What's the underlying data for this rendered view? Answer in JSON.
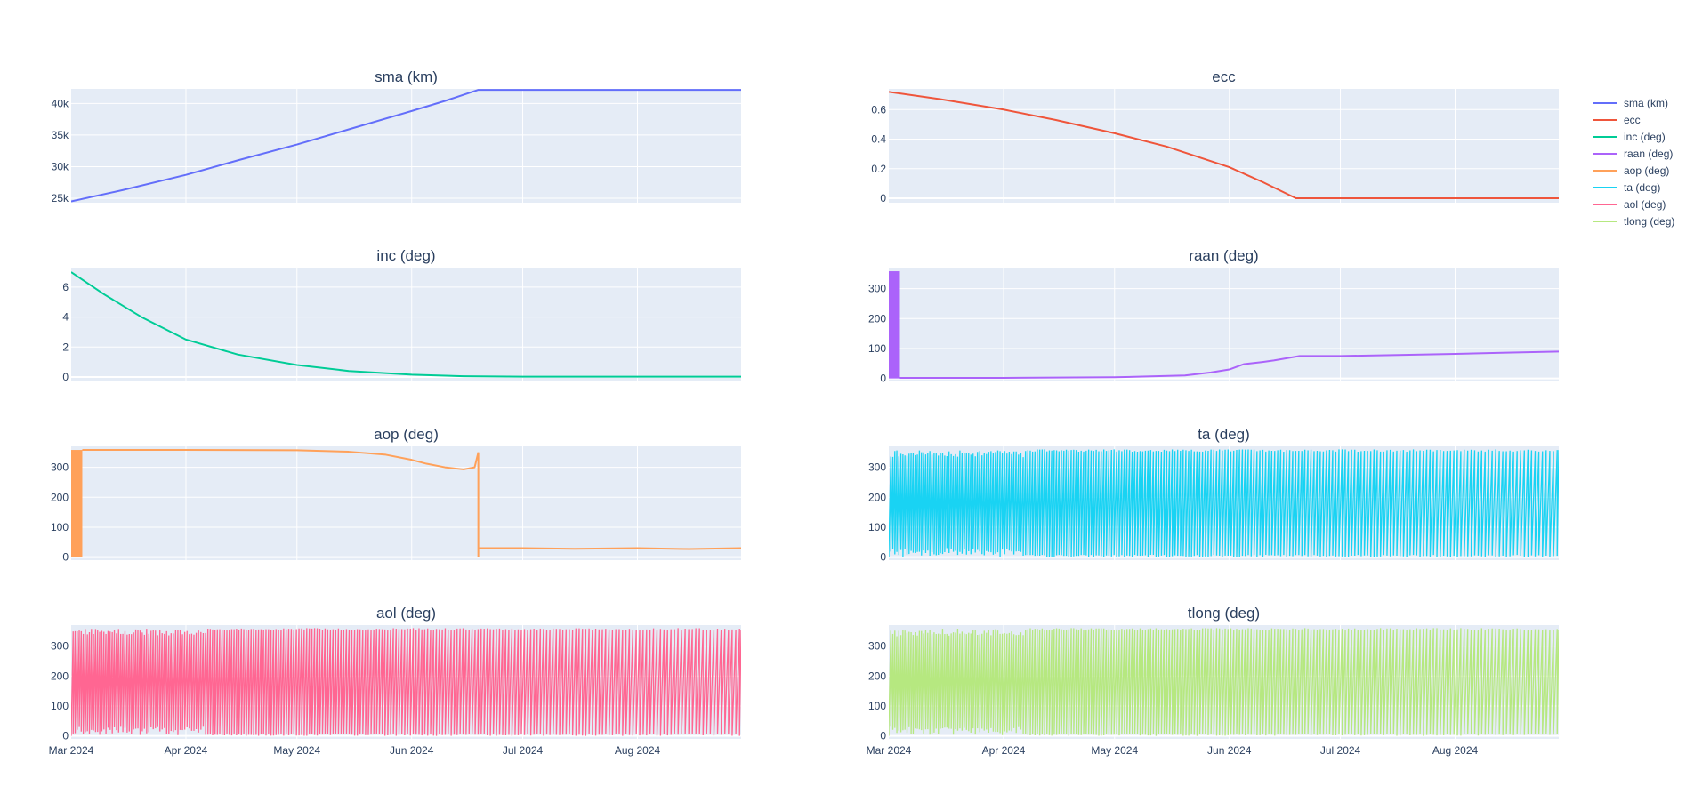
{
  "chart_data": {
    "type": "line",
    "x_range": [
      "2024-03-01",
      "2024-08-29"
    ],
    "x_ticks": [
      {
        "date": "2024-03-01",
        "label": "Mar 2024"
      },
      {
        "date": "2024-04-01",
        "label": "Apr 2024"
      },
      {
        "date": "2024-05-01",
        "label": "May 2024"
      },
      {
        "date": "2024-06-01",
        "label": "Jun 2024"
      },
      {
        "date": "2024-07-01",
        "label": "Jul 2024"
      },
      {
        "date": "2024-08-01",
        "label": "Aug 2024"
      }
    ],
    "legend_position": "top-right",
    "grid": true,
    "plot_bgcolor": "#e5ecf6",
    "subplots": [
      {
        "name": "sma (km)",
        "title": "sma (km)",
        "color": "#636efa",
        "kind": "smooth",
        "ylim": [
          24300,
          42300
        ],
        "y_ticks": [
          {
            "value": 25000,
            "label": "25k"
          },
          {
            "value": 30000,
            "label": "30k"
          },
          {
            "value": 35000,
            "label": "35k"
          },
          {
            "value": 40000,
            "label": "40k"
          }
        ],
        "x": [
          "2024-03-01",
          "2024-03-15",
          "2024-04-01",
          "2024-04-15",
          "2024-05-01",
          "2024-05-15",
          "2024-06-01",
          "2024-06-10",
          "2024-06-19",
          "2024-07-01",
          "2024-08-01",
          "2024-08-29"
        ],
        "y": [
          24500,
          26300,
          28700,
          31000,
          33500,
          35900,
          38800,
          40400,
          42150,
          42150,
          42150,
          42150
        ]
      },
      {
        "name": "ecc",
        "title": "ecc",
        "color": "#ef553b",
        "kind": "smooth",
        "ylim": [
          -0.03,
          0.74
        ],
        "y_ticks": [
          {
            "value": 0,
            "label": "0"
          },
          {
            "value": 0.2,
            "label": "0.2"
          },
          {
            "value": 0.4,
            "label": "0.4"
          },
          {
            "value": 0.6,
            "label": "0.6"
          }
        ],
        "x": [
          "2024-03-01",
          "2024-03-15",
          "2024-04-01",
          "2024-04-15",
          "2024-05-01",
          "2024-05-15",
          "2024-06-01",
          "2024-06-10",
          "2024-06-19",
          "2024-07-01",
          "2024-08-01",
          "2024-08-29"
        ],
        "y": [
          0.72,
          0.67,
          0.6,
          0.53,
          0.44,
          0.35,
          0.21,
          0.11,
          0.0,
          0.0,
          0.0,
          0.0
        ]
      },
      {
        "name": "inc (deg)",
        "title": "inc (deg)",
        "color": "#00cc96",
        "kind": "smooth",
        "ylim": [
          -0.3,
          7.3
        ],
        "y_ticks": [
          {
            "value": 0,
            "label": "0"
          },
          {
            "value": 2,
            "label": "2"
          },
          {
            "value": 4,
            "label": "4"
          },
          {
            "value": 6,
            "label": "6"
          }
        ],
        "x": [
          "2024-03-01",
          "2024-03-10",
          "2024-03-20",
          "2024-04-01",
          "2024-04-15",
          "2024-05-01",
          "2024-05-15",
          "2024-06-01",
          "2024-06-15",
          "2024-07-01",
          "2024-08-01",
          "2024-08-29"
        ],
        "y": [
          7.0,
          5.5,
          4.0,
          2.5,
          1.5,
          0.8,
          0.4,
          0.15,
          0.05,
          0.02,
          0.02,
          0.02
        ]
      },
      {
        "name": "raan (deg)",
        "title": "raan (deg)",
        "color": "#ab63fa",
        "kind": "raan",
        "ylim": [
          -10,
          370
        ],
        "y_ticks": [
          {
            "value": 0,
            "label": "0"
          },
          {
            "value": 100,
            "label": "100"
          },
          {
            "value": 200,
            "label": "200"
          },
          {
            "value": 300,
            "label": "300"
          }
        ],
        "oscillation_range": [
          0,
          358
        ],
        "oscillation_until": "2024-03-04",
        "x": [
          "2024-03-04",
          "2024-04-01",
          "2024-05-01",
          "2024-05-20",
          "2024-05-27",
          "2024-06-01",
          "2024-06-05",
          "2024-06-10",
          "2024-06-13",
          "2024-06-20",
          "2024-07-01",
          "2024-07-15",
          "2024-08-01",
          "2024-08-15",
          "2024-08-29"
        ],
        "y": [
          2,
          2,
          4,
          10,
          20,
          30,
          48,
          55,
          60,
          75,
          75,
          78,
          82,
          86,
          90
        ]
      },
      {
        "name": "aop (deg)",
        "title": "aop (deg)",
        "color": "#ffa15a",
        "kind": "aop",
        "ylim": [
          -10,
          370
        ],
        "y_ticks": [
          {
            "value": 0,
            "label": "0"
          },
          {
            "value": 100,
            "label": "100"
          },
          {
            "value": 200,
            "label": "200"
          },
          {
            "value": 300,
            "label": "300"
          }
        ],
        "oscillation_range": [
          0,
          358
        ],
        "oscillation_until": "2024-03-04",
        "x": [
          "2024-03-04",
          "2024-04-01",
          "2024-05-01",
          "2024-05-15",
          "2024-05-25",
          "2024-06-01",
          "2024-06-05",
          "2024-06-10",
          "2024-06-15",
          "2024-06-18",
          "2024-06-19"
        ],
        "y": [
          358,
          358,
          357,
          352,
          342,
          325,
          312,
          300,
          293,
          300,
          350
        ],
        "after_jump_x": [
          "2024-06-19",
          "2024-07-01",
          "2024-07-15",
          "2024-08-01",
          "2024-08-15",
          "2024-08-29"
        ],
        "after_jump_y": [
          30,
          30,
          28,
          30,
          27,
          30
        ]
      },
      {
        "name": "ta (deg)",
        "title": "ta (deg)",
        "color": "#19d3f3",
        "kind": "wrap",
        "ylim": [
          -10,
          370
        ],
        "y_ticks": [
          {
            "value": 0,
            "label": "0"
          },
          {
            "value": 100,
            "label": "100"
          },
          {
            "value": 200,
            "label": "200"
          },
          {
            "value": 300,
            "label": "300"
          }
        ],
        "range": [
          0,
          360
        ]
      },
      {
        "name": "aol (deg)",
        "title": "aol (deg)",
        "color": "#ff6692",
        "kind": "wrap",
        "ylim": [
          -10,
          370
        ],
        "y_ticks": [
          {
            "value": 0,
            "label": "0"
          },
          {
            "value": 100,
            "label": "100"
          },
          {
            "value": 200,
            "label": "200"
          },
          {
            "value": 300,
            "label": "300"
          }
        ],
        "range": [
          0,
          360
        ]
      },
      {
        "name": "tlong (deg)",
        "title": "tlong (deg)",
        "color": "#b6e880",
        "kind": "wrap",
        "ylim": [
          -10,
          370
        ],
        "y_ticks": [
          {
            "value": 0,
            "label": "0"
          },
          {
            "value": 100,
            "label": "100"
          },
          {
            "value": 200,
            "label": "200"
          },
          {
            "value": 300,
            "label": "300"
          }
        ],
        "range": [
          0,
          360
        ]
      }
    ]
  }
}
